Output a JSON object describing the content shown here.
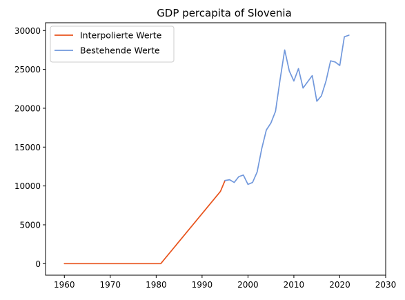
{
  "chart_data": {
    "type": "line",
    "title": "GDP percapita of Slovenia",
    "xlabel": "",
    "ylabel": "",
    "xlim": [
      1955.9,
      2030
    ],
    "ylim": [
      -1480,
      31000
    ],
    "x_ticks": [
      1960,
      1970,
      1980,
      1990,
      2000,
      2010,
      2020,
      2030
    ],
    "y_ticks": [
      0,
      5000,
      10000,
      15000,
      20000,
      25000,
      30000
    ],
    "grid": false,
    "legend_position": "top-left",
    "series": [
      {
        "name": "Interpolierte Werte",
        "color": "#e8531c",
        "x": [
          1960,
          1981,
          1994,
          1995
        ],
        "y": [
          0,
          0,
          9300,
          10700
        ]
      },
      {
        "name": "Bestehende Werte",
        "color": "#7198dc",
        "x": [
          1995,
          1996,
          1997,
          1998,
          1999,
          2000,
          2001,
          2002,
          2003,
          2004,
          2005,
          2006,
          2007,
          2008,
          2009,
          2010,
          2011,
          2012,
          2013,
          2014,
          2015,
          2016,
          2017,
          2018,
          2019,
          2020,
          2021,
          2022
        ],
        "y": [
          10700,
          10800,
          10450,
          11200,
          11400,
          10200,
          10450,
          11800,
          14800,
          17200,
          18100,
          19600,
          23700,
          27500,
          24800,
          23500,
          25100,
          22600,
          23400,
          24200,
          20900,
          21600,
          23500,
          26100,
          25950,
          25500,
          29200,
          29400
        ]
      }
    ]
  }
}
